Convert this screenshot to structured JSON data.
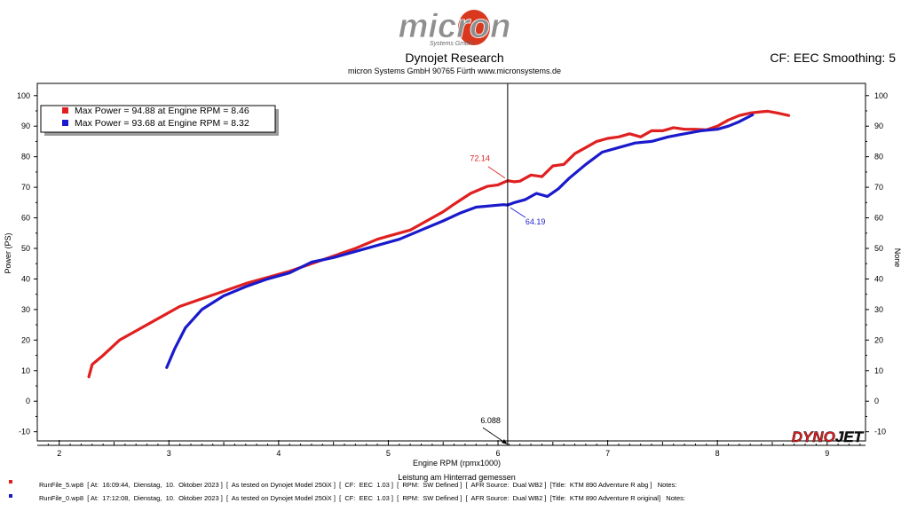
{
  "brand": {
    "name": "micron",
    "sub": "Systems GmbH"
  },
  "header": {
    "title": "Dynojet Research",
    "subtitle": "micron Systems GmbH  90765 Fürth www.micronsystems.de",
    "correction": "CF: EEC Smoothing: 5"
  },
  "colors": {
    "red": "#e02020",
    "blue": "#1a1acc",
    "dynojet": "#e02020"
  },
  "chart_data": {
    "type": "line",
    "xlabel": "Engine RPM (rpmx1000)",
    "xlabel2": "Leistung am Hinterrad gemessen",
    "ylabel": "Power (PS)",
    "ylabel_right": "None",
    "xlim": [
      1.8,
      9.35
    ],
    "ylim": [
      -13,
      104
    ],
    "xticks": [
      2,
      3,
      4,
      5,
      6,
      7,
      8,
      9
    ],
    "yticks": [
      -10,
      0,
      10,
      20,
      30,
      40,
      50,
      60,
      70,
      80,
      90,
      100
    ],
    "grid": false,
    "legend_position": "top-left",
    "cursor": {
      "x": 6.088,
      "label": "6.088"
    },
    "series": [
      {
        "name": "Max Power = 94.88 at Engine RPM = 8.46",
        "color": "#e02020",
        "cursor_value": "72.14",
        "points": [
          [
            2.27,
            8
          ],
          [
            2.3,
            12
          ],
          [
            2.4,
            15
          ],
          [
            2.55,
            20
          ],
          [
            2.7,
            23
          ],
          [
            2.9,
            27
          ],
          [
            3.1,
            31
          ],
          [
            3.3,
            33.5
          ],
          [
            3.5,
            36
          ],
          [
            3.7,
            38.5
          ],
          [
            3.9,
            40.5
          ],
          [
            4.1,
            42.5
          ],
          [
            4.3,
            45
          ],
          [
            4.5,
            47.5
          ],
          [
            4.7,
            50
          ],
          [
            4.9,
            53
          ],
          [
            5.0,
            54
          ],
          [
            5.2,
            56
          ],
          [
            5.35,
            59
          ],
          [
            5.5,
            62
          ],
          [
            5.6,
            64.5
          ],
          [
            5.75,
            68
          ],
          [
            5.9,
            70.3
          ],
          [
            6.0,
            70.8
          ],
          [
            6.088,
            72.14
          ],
          [
            6.15,
            71.8
          ],
          [
            6.2,
            72
          ],
          [
            6.3,
            74
          ],
          [
            6.4,
            73.5
          ],
          [
            6.5,
            77
          ],
          [
            6.6,
            77.5
          ],
          [
            6.7,
            81
          ],
          [
            6.8,
            83
          ],
          [
            6.9,
            85
          ],
          [
            7.0,
            86
          ],
          [
            7.1,
            86.5
          ],
          [
            7.2,
            87.5
          ],
          [
            7.3,
            86.5
          ],
          [
            7.4,
            88.5
          ],
          [
            7.5,
            88.5
          ],
          [
            7.6,
            89.5
          ],
          [
            7.7,
            89
          ],
          [
            7.8,
            89
          ],
          [
            7.9,
            88.8
          ],
          [
            8.0,
            90
          ],
          [
            8.1,
            92
          ],
          [
            8.2,
            93.5
          ],
          [
            8.3,
            94.3
          ],
          [
            8.4,
            94.7
          ],
          [
            8.46,
            94.88
          ],
          [
            8.55,
            94.3
          ],
          [
            8.65,
            93.5
          ]
        ]
      },
      {
        "name": "Max Power = 93.68 at Engine RPM = 8.32",
        "color": "#1a1acc",
        "cursor_value": "64.19",
        "points": [
          [
            2.98,
            11
          ],
          [
            3.05,
            17
          ],
          [
            3.15,
            24
          ],
          [
            3.3,
            30
          ],
          [
            3.5,
            34.5
          ],
          [
            3.7,
            37.5
          ],
          [
            3.9,
            40
          ],
          [
            4.1,
            42
          ],
          [
            4.3,
            45.5
          ],
          [
            4.5,
            47
          ],
          [
            4.7,
            49
          ],
          [
            4.9,
            51
          ],
          [
            5.1,
            53
          ],
          [
            5.3,
            56
          ],
          [
            5.5,
            59
          ],
          [
            5.65,
            61.5
          ],
          [
            5.8,
            63.5
          ],
          [
            5.95,
            64
          ],
          [
            6.05,
            64.3
          ],
          [
            6.088,
            64.19
          ],
          [
            6.15,
            65
          ],
          [
            6.25,
            66
          ],
          [
            6.35,
            68
          ],
          [
            6.45,
            67
          ],
          [
            6.55,
            69.5
          ],
          [
            6.65,
            73
          ],
          [
            6.8,
            77.5
          ],
          [
            6.95,
            81.5
          ],
          [
            7.1,
            83
          ],
          [
            7.25,
            84.5
          ],
          [
            7.4,
            85
          ],
          [
            7.55,
            86.5
          ],
          [
            7.7,
            87.5
          ],
          [
            7.85,
            88.5
          ],
          [
            8.0,
            89
          ],
          [
            8.1,
            90
          ],
          [
            8.2,
            91.5
          ],
          [
            8.32,
            93.68
          ]
        ]
      }
    ]
  },
  "logo_dynojet": {
    "part1": "DYNO",
    "part2": "JET"
  },
  "footer": {
    "runs": [
      "RunFile_5.wp8  [ At:  16:09:44,  Dienstag,  10.  Oktober 2023 ]  [  As tested on Dynojet Model 250iX ]  [  CF:  EEC  1.03 ]  [  RPM:  SW Defined ]  [  AFR Source:  Dual WB2 ]  [Title:  KTM 890 Adventure R abg ]   Notes:",
      "RunFile_0.wp8  [ At:  17:12:08,  Dienstag,  10.  Oktober 2023 ]  [  As tested on Dynojet Model 250iX ]  [  CF:  EEC  1.03 ]  [  RPM:  SW Defined ]  [  AFR Source:  Dual WB2 ]  [Title:  KTM 890 Adventure R original]   Notes:"
    ]
  }
}
